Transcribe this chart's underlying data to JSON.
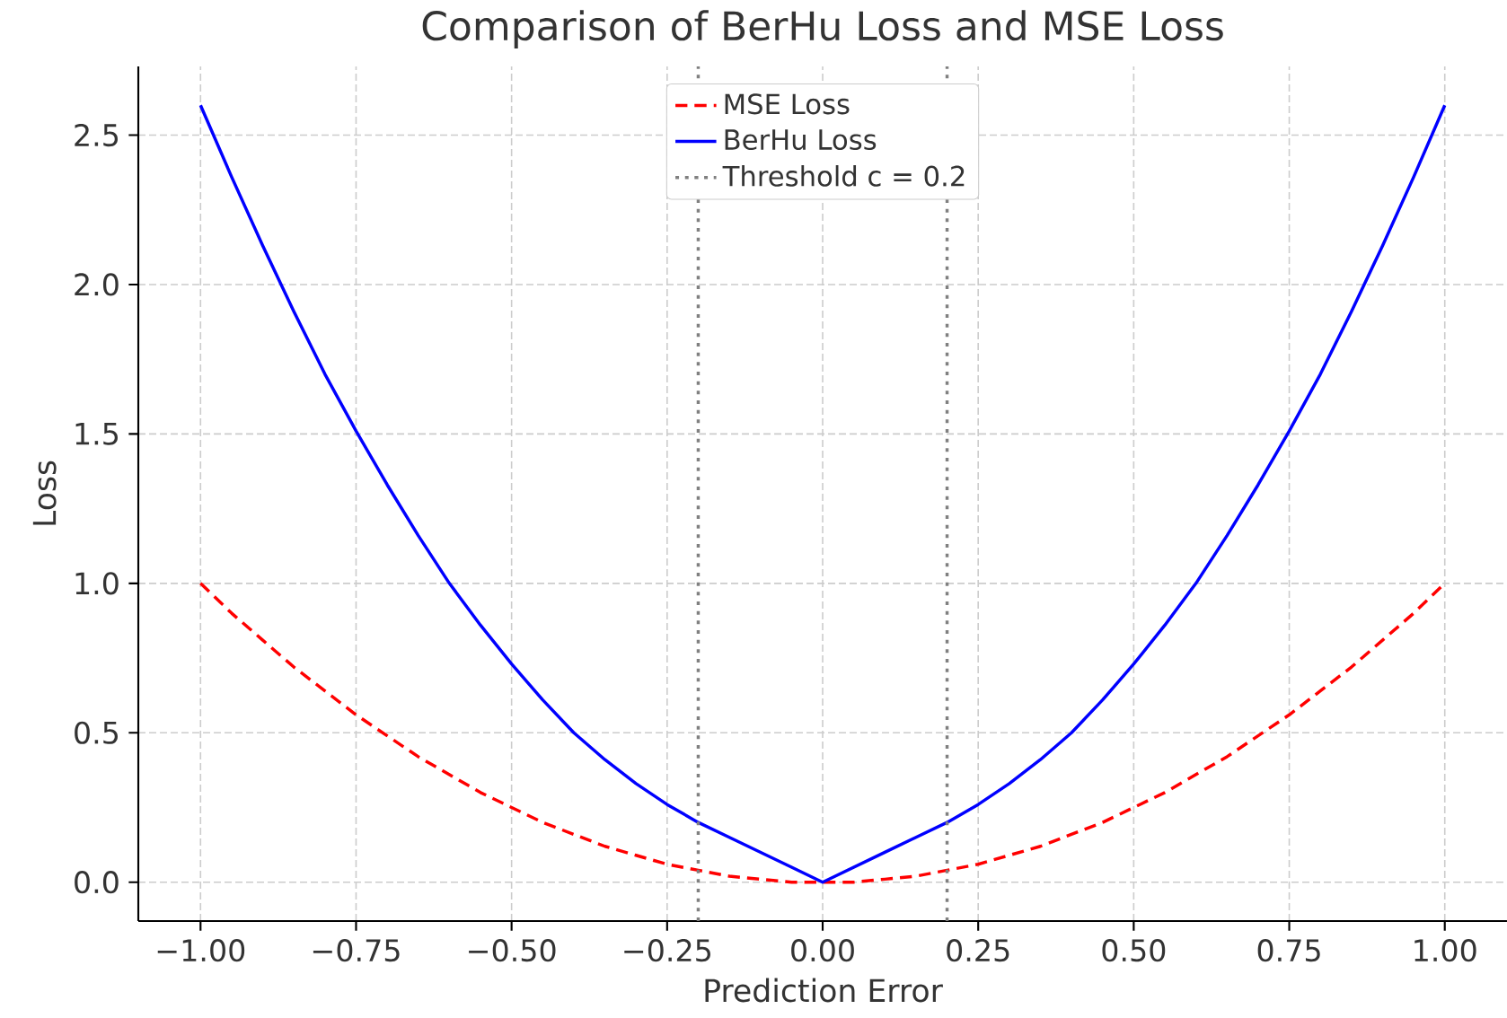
{
  "chart_data": {
    "type": "line",
    "title": "Comparison of BerHu Loss and MSE Loss",
    "xlabel": "Prediction Error",
    "ylabel": "Loss",
    "x": [
      -1,
      -0.95,
      -0.9,
      -0.85,
      -0.8,
      -0.75,
      -0.7,
      -0.65,
      -0.6,
      -0.55,
      -0.5,
      -0.45,
      -0.4,
      -0.35,
      -0.3,
      -0.25,
      -0.2,
      -0.15,
      -0.1,
      -0.05,
      0,
      0.05,
      0.1,
      0.15,
      0.2,
      0.25,
      0.3,
      0.35,
      0.4,
      0.45,
      0.5,
      0.55,
      0.6,
      0.65,
      0.7,
      0.75,
      0.8,
      0.85,
      0.9,
      0.95,
      1
    ],
    "series": [
      {
        "name": "MSE Loss",
        "color": "#ff0000",
        "line_style": "dashed",
        "values": [
          1,
          0.9,
          0.81,
          0.72,
          0.64,
          0.56,
          0.49,
          0.42,
          0.36,
          0.3,
          0.25,
          0.2,
          0.16,
          0.12,
          0.09,
          0.06,
          0.04,
          0.02,
          0.01,
          0,
          0,
          0,
          0.01,
          0.02,
          0.04,
          0.06,
          0.09,
          0.12,
          0.16,
          0.2,
          0.25,
          0.3,
          0.36,
          0.42,
          0.49,
          0.56,
          0.64,
          0.72,
          0.81,
          0.9,
          1
        ]
      },
      {
        "name": "BerHu Loss",
        "color": "#0000ff",
        "line_style": "solid",
        "values": [
          2.6,
          2.36,
          2.13,
          1.91,
          1.7,
          1.51,
          1.33,
          1.16,
          1.0,
          0.86,
          0.73,
          0.61,
          0.5,
          0.41,
          0.33,
          0.26,
          0.2,
          0.15,
          0.1,
          0.05,
          0,
          0.05,
          0.1,
          0.15,
          0.2,
          0.26,
          0.33,
          0.41,
          0.5,
          0.61,
          0.73,
          0.86,
          1.0,
          1.16,
          1.33,
          1.51,
          1.7,
          1.91,
          2.13,
          2.36,
          2.6
        ]
      }
    ],
    "ref_lines": [
      {
        "axis": "x",
        "value": -0.2,
        "color": "#808080",
        "line_style": "dotted"
      },
      {
        "axis": "x",
        "value": 0.2,
        "label": "Threshold c = 0.2",
        "color": "#808080",
        "line_style": "dotted"
      }
    ],
    "xlim": [
      -1.1,
      1.1
    ],
    "ylim": [
      -0.13,
      2.73
    ],
    "xticks": [
      {
        "value": -1,
        "label": "−1.00"
      },
      {
        "value": -0.75,
        "label": "−0.75"
      },
      {
        "value": -0.5,
        "label": "−0.50"
      },
      {
        "value": -0.25,
        "label": "−0.25"
      },
      {
        "value": 0,
        "label": "0.00"
      },
      {
        "value": 0.25,
        "label": "0.25"
      },
      {
        "value": 0.5,
        "label": "0.50"
      },
      {
        "value": 0.75,
        "label": "0.75"
      },
      {
        "value": 1,
        "label": "1.00"
      }
    ],
    "yticks": [
      {
        "value": 0,
        "label": "0.0"
      },
      {
        "value": 0.5,
        "label": "0.5"
      },
      {
        "value": 1,
        "label": "1.0"
      },
      {
        "value": 1.5,
        "label": "1.5"
      },
      {
        "value": 2,
        "label": "2.0"
      },
      {
        "value": 2.5,
        "label": "2.5"
      }
    ],
    "grid": true,
    "legend": "top",
    "marker": "none"
  }
}
